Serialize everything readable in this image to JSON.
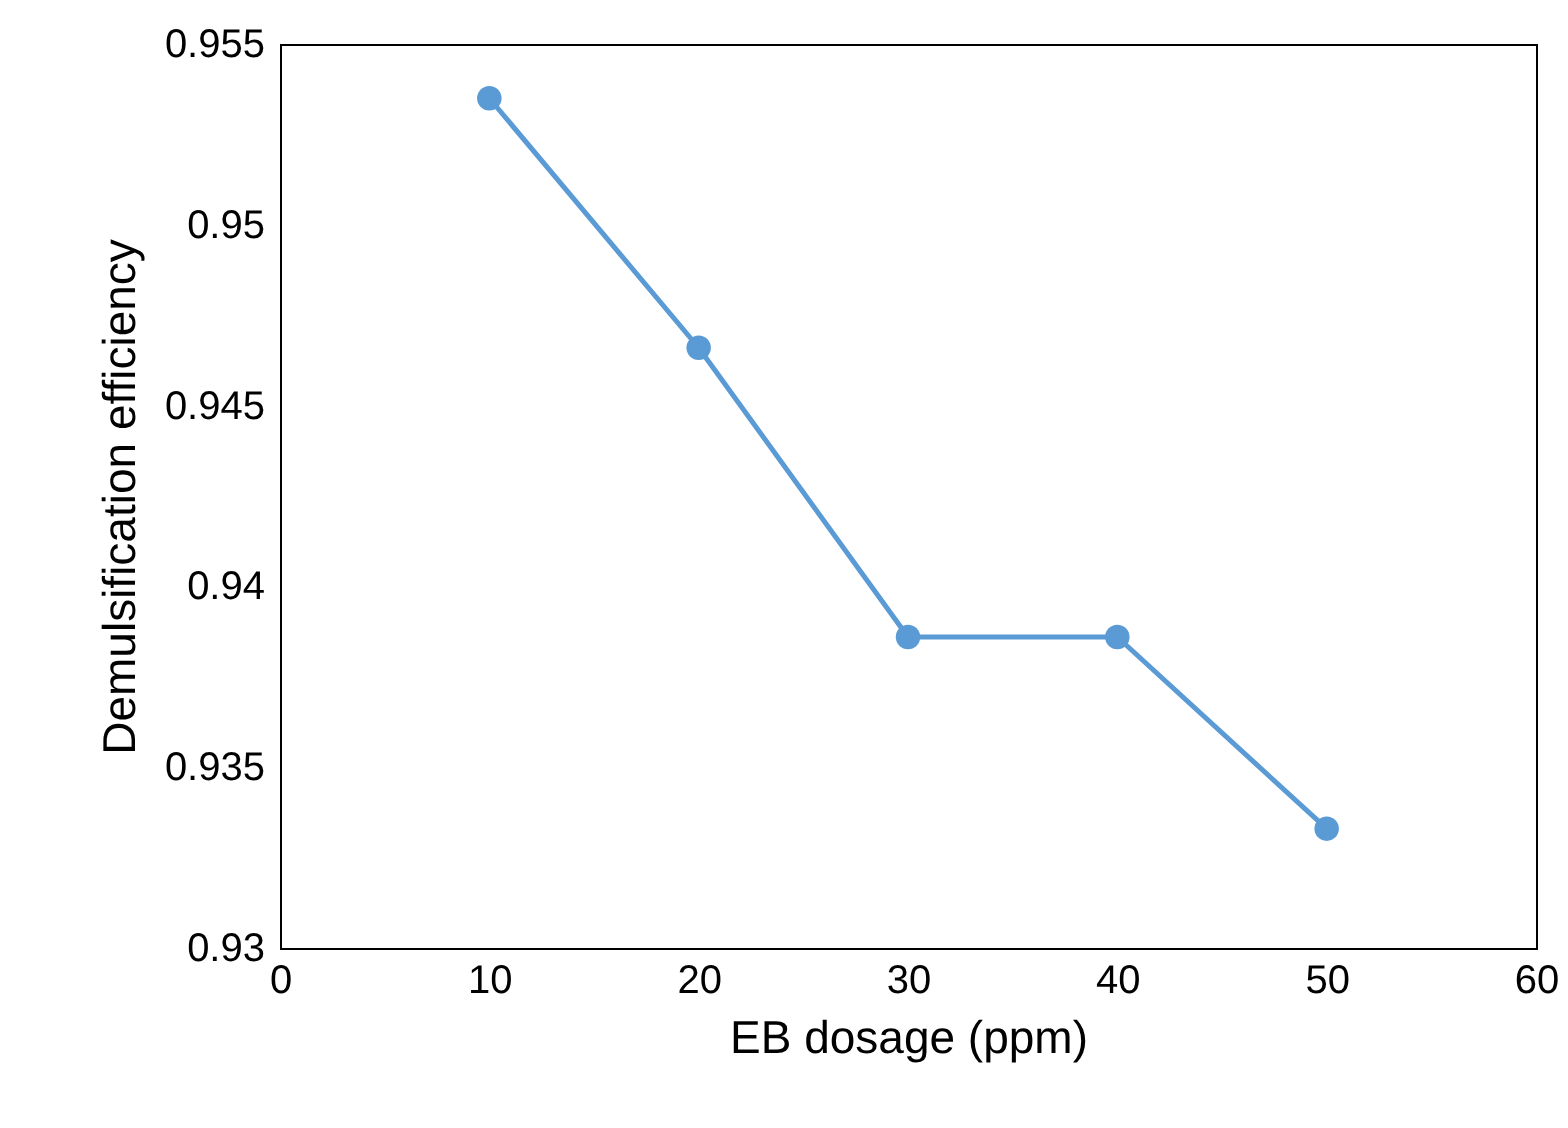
{
  "chart_data": {
    "type": "line",
    "xlabel": "EB dosage (ppm)",
    "ylabel": "Demulsification efficiency",
    "x": [
      10,
      20,
      30,
      40,
      50
    ],
    "series": [
      {
        "color": "#5b9bd5",
        "values": [
          0.9535,
          0.9466,
          0.9386,
          0.9386,
          0.9333
        ]
      }
    ],
    "xlim": [
      0,
      60
    ],
    "xticks": [
      0,
      10,
      20,
      30,
      40,
      50,
      60
    ],
    "ylim": [
      0.93,
      0.955
    ],
    "yticks": [
      0.93,
      0.935,
      0.94,
      0.945,
      0.95,
      0.955
    ],
    "grid": false,
    "legend": false,
    "marker": "circle",
    "line_style": "solid"
  }
}
